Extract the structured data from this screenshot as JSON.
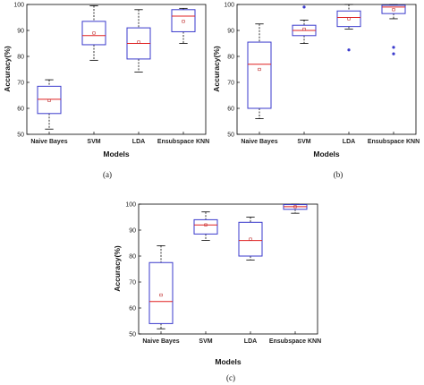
{
  "colors": {
    "box": "#3a3acc",
    "median": "#e02020",
    "mean": "#c03030",
    "whisker": "#000000",
    "outlier": "#3a3acc",
    "axis": "#000000"
  },
  "chart_data": [
    {
      "id": "a",
      "type": "box",
      "caption": "(a)",
      "xlabel": "Models",
      "ylabel": "Accuracy(%)",
      "ylim": [
        50,
        100
      ],
      "yticks": [
        50,
        60,
        70,
        80,
        90,
        100
      ],
      "categories": [
        "Naive Bayes",
        "SVM",
        "LDA",
        "Ensubspace KNN"
      ],
      "boxes": [
        {
          "min": 52,
          "q1": 58,
          "median": 63.5,
          "q3": 68.5,
          "max": 71,
          "mean": 63,
          "outliers": []
        },
        {
          "min": 78.5,
          "q1": 84.5,
          "median": 88,
          "q3": 93.5,
          "max": 99.5,
          "mean": 89,
          "outliers": []
        },
        {
          "min": 74,
          "q1": 79,
          "median": 85,
          "q3": 91,
          "max": 98,
          "mean": 85.5,
          "outliers": []
        },
        {
          "min": 85,
          "q1": 89.5,
          "median": 95.5,
          "q3": 98,
          "max": 98.5,
          "mean": 93.5,
          "outliers": []
        }
      ]
    },
    {
      "id": "b",
      "type": "box",
      "caption": "(b)",
      "xlabel": "Models",
      "ylabel": "Accuracy(%)",
      "ylim": [
        50,
        100
      ],
      "yticks": [
        50,
        60,
        70,
        80,
        90,
        100
      ],
      "categories": [
        "Naive Bayes",
        "SVM",
        "LDA",
        "Ensubspace KNN"
      ],
      "boxes": [
        {
          "min": 56,
          "q1": 60,
          "median": 77,
          "q3": 85.5,
          "max": 92.5,
          "mean": 75,
          "outliers": []
        },
        {
          "min": 85,
          "q1": 88,
          "median": 90,
          "q3": 92,
          "max": 94,
          "mean": 90.5,
          "outliers": [
            99
          ]
        },
        {
          "min": 90.5,
          "q1": 91.5,
          "median": 95,
          "q3": 97.5,
          "max": 100,
          "mean": 94.5,
          "outliers": [
            82.5
          ]
        },
        {
          "min": 94.5,
          "q1": 96.5,
          "median": 99,
          "q3": 99.7,
          "max": 100,
          "mean": 98,
          "outliers": [
            83.5,
            81
          ]
        }
      ]
    },
    {
      "id": "c",
      "type": "box",
      "caption": "(c)",
      "xlabel": "Models",
      "ylabel": "Accuracy(%)",
      "ylim": [
        50,
        100
      ],
      "yticks": [
        50,
        60,
        70,
        80,
        90,
        100
      ],
      "categories": [
        "Naive Bayes",
        "SVM",
        "LDA",
        "Ensubspace KNN"
      ],
      "boxes": [
        {
          "min": 52,
          "q1": 54,
          "median": 62.5,
          "q3": 77.5,
          "max": 84,
          "mean": 65,
          "outliers": []
        },
        {
          "min": 86,
          "q1": 88.5,
          "median": 92,
          "q3": 94,
          "max": 97,
          "mean": 92,
          "outliers": []
        },
        {
          "min": 78.5,
          "q1": 80,
          "median": 86,
          "q3": 93,
          "max": 95,
          "mean": 86.5,
          "outliers": []
        },
        {
          "min": 96.5,
          "q1": 98,
          "median": 99,
          "q3": 99.8,
          "max": 100,
          "mean": 99,
          "outliers": []
        }
      ]
    }
  ]
}
